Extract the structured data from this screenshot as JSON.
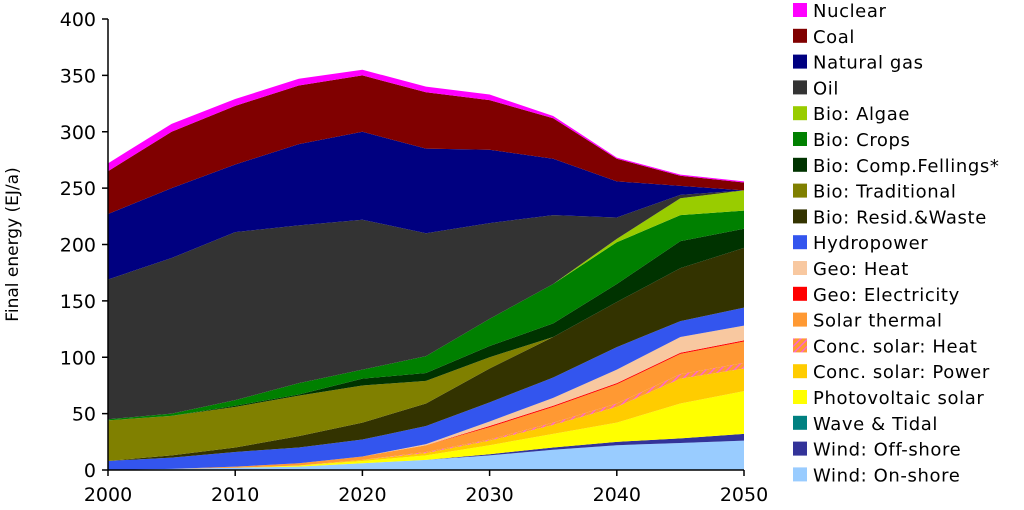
{
  "chart_data": {
    "type": "area",
    "stacked": true,
    "title": "",
    "xlabel": "",
    "ylabel": "Final energy (EJ/a)",
    "xlim": [
      2000,
      2050
    ],
    "ylim": [
      0,
      400
    ],
    "x": [
      2000,
      2005,
      2010,
      2015,
      2020,
      2025,
      2030,
      2035,
      2040,
      2045,
      2050
    ],
    "x_ticks": [
      "2000",
      "2010",
      "2020",
      "2030",
      "2040",
      "2050"
    ],
    "y_ticks": [
      "0",
      "50",
      "100",
      "150",
      "200",
      "250",
      "300",
      "350",
      "400"
    ],
    "grid": false,
    "legend_position": "right",
    "series": [
      {
        "name": "Wind: On-shore",
        "color": "#99ccff",
        "values": [
          0,
          1,
          2,
          3,
          6,
          9,
          13,
          18,
          22,
          24,
          26
        ]
      },
      {
        "name": "Wind: Off-shore",
        "color": "#333399",
        "values": [
          0,
          0,
          0,
          0,
          0,
          0,
          1,
          2,
          3,
          4,
          6
        ]
      },
      {
        "name": "Wave & Tidal",
        "color": "#008080",
        "values": [
          0,
          0,
          0,
          0,
          0,
          0,
          0,
          0,
          0,
          0,
          0
        ]
      },
      {
        "name": "Photovoltaic solar",
        "color": "#ffff00",
        "values": [
          0,
          0,
          0,
          1,
          2,
          4,
          8,
          12,
          17,
          31,
          38
        ]
      },
      {
        "name": "Conc. solar: Power",
        "color": "#ffcc00",
        "values": [
          0,
          0,
          0,
          0,
          1,
          2,
          4,
          8,
          14,
          22,
          20
        ]
      },
      {
        "name": "Conc. solar: Heat",
        "color": "#ff66cc",
        "pattern": "hatched",
        "values": [
          0,
          0,
          0,
          0,
          0,
          1,
          1,
          2,
          3,
          4,
          5
        ]
      },
      {
        "name": "Solar thermal",
        "color": "#ff9933",
        "values": [
          0,
          0,
          1,
          2,
          3,
          6,
          11,
          14,
          17,
          18,
          19
        ]
      },
      {
        "name": "Geo: Electricity",
        "color": "#ff0000",
        "values": [
          0,
          0,
          0,
          0,
          0,
          0,
          1,
          1,
          1,
          1,
          1
        ]
      },
      {
        "name": "Geo: Heat",
        "color": "#f8c8a0",
        "values": [
          0,
          0,
          0,
          0,
          0,
          1,
          4,
          7,
          12,
          14,
          13
        ]
      },
      {
        "name": "Hydropower",
        "color": "#3355ee",
        "values": [
          8,
          10,
          13,
          14,
          15,
          16,
          17,
          18,
          20,
          14,
          16
        ]
      },
      {
        "name": "Bio: Resid.&Waste",
        "color": "#333300",
        "values": [
          0,
          2,
          4,
          10,
          15,
          20,
          30,
          36,
          40,
          47,
          53
        ]
      },
      {
        "name": "Bio: Traditional",
        "color": "#808000",
        "values": [
          36,
          35,
          36,
          36,
          33,
          20,
          10,
          0,
          0,
          0,
          0
        ]
      },
      {
        "name": "Bio: Comp.Fellings*",
        "color": "#003300",
        "values": [
          0,
          0,
          1,
          1,
          6,
          7,
          10,
          12,
          16,
          24,
          17
        ]
      },
      {
        "name": "Bio: Crops",
        "color": "#008000",
        "values": [
          1,
          2,
          5,
          10,
          8,
          15,
          24,
          35,
          37,
          23,
          16
        ]
      },
      {
        "name": "Bio: Algae",
        "color": "#99cc00",
        "values": [
          0,
          0,
          0,
          0,
          0,
          0,
          0,
          0,
          3,
          15,
          18
        ]
      },
      {
        "name": "Oil",
        "color": "#333333",
        "values": [
          124,
          138,
          149,
          140,
          133,
          109,
          85,
          61,
          19,
          3,
          0
        ]
      },
      {
        "name": "Natural gas",
        "color": "#000080",
        "values": [
          58,
          62,
          60,
          72,
          78,
          75,
          65,
          50,
          32,
          8,
          0
        ]
      },
      {
        "name": "Coal",
        "color": "#800000",
        "values": [
          38,
          50,
          52,
          52,
          50,
          50,
          44,
          36,
          20,
          9,
          7
        ]
      },
      {
        "name": "Nuclear",
        "color": "#ff00ff",
        "values": [
          7,
          7,
          6,
          6,
          5,
          5,
          5,
          2,
          1,
          1,
          1
        ]
      }
    ],
    "legend_order": [
      "Nuclear",
      "Coal",
      "Natural gas",
      "Oil",
      "Bio: Algae",
      "Bio: Crops",
      "Bio: Comp.Fellings*",
      "Bio: Traditional",
      "Bio: Resid.&Waste",
      "Hydropower",
      "Geo: Heat",
      "Geo: Electricity",
      "Solar thermal",
      "Conc. solar: Heat",
      "Conc. solar: Power",
      "Photovoltaic solar",
      "Wave & Tidal",
      "Wind: Off-shore",
      "Wind: On-shore"
    ]
  }
}
